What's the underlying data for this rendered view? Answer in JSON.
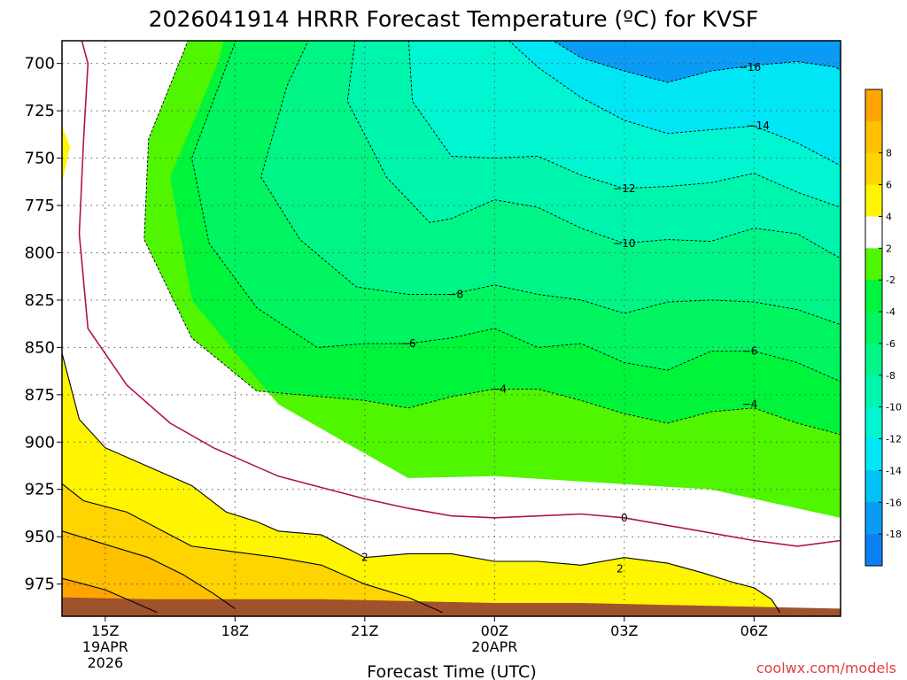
{
  "chart_data": {
    "type": "heatmap",
    "title": "2026041914 HRRR Forecast Temperature (ºC) for KVSF",
    "xlabel": "Forecast Time (UTC)",
    "ylabel": "",
    "credit": "coolwx.com/models",
    "x_ticks": [
      {
        "hour": 15,
        "lines": [
          "15Z",
          "19APR",
          "2026"
        ]
      },
      {
        "hour": 18,
        "lines": [
          "18Z"
        ]
      },
      {
        "hour": 21,
        "lines": [
          "21Z"
        ]
      },
      {
        "hour": 24,
        "lines": [
          "00Z",
          "20APR"
        ]
      },
      {
        "hour": 27,
        "lines": [
          "03Z"
        ]
      },
      {
        "hour": 30,
        "lines": [
          "06Z"
        ]
      }
    ],
    "xlim": [
      14,
      32
    ],
    "y_ticks": [
      700,
      725,
      750,
      775,
      800,
      825,
      850,
      875,
      900,
      925,
      950,
      975
    ],
    "ylim": [
      688,
      992
    ],
    "y_units": "hPa",
    "y_inverted": true,
    "grid": true,
    "colorbar": {
      "levels": [
        -20,
        -18,
        -16,
        -14,
        -12,
        -10,
        -8,
        -6,
        -4,
        -2,
        2,
        4,
        6,
        8,
        10
      ],
      "colors": [
        "#0a80f5",
        "#0a9cf5",
        "#00c2f5",
        "#00e6f5",
        "#00f5d0",
        "#00f5ac",
        "#00f586",
        "#00f560",
        "#00f53a",
        "#50f500",
        "#ffffff",
        "#fff500",
        "#ffd400",
        "#ffc000",
        "#ffa300"
      ],
      "labels": [
        "-18",
        "-16",
        "-14",
        "-12",
        "-10",
        "-8",
        "-6",
        "-4",
        "-2",
        "2",
        "4",
        "6",
        "8"
      ]
    },
    "contour_labels": [
      {
        "text": "-16",
        "x": 29.9,
        "p": 702
      },
      {
        "text": "-14",
        "x": 30.1,
        "p": 733
      },
      {
        "text": "-12",
        "x": 27.0,
        "p": 766
      },
      {
        "text": "-10",
        "x": 27.0,
        "p": 795
      },
      {
        "text": "-8",
        "x": 23.1,
        "p": 822
      },
      {
        "text": "-6",
        "x": 22.0,
        "p": 848
      },
      {
        "text": "-6",
        "x": 29.9,
        "p": 852
      },
      {
        "text": "-4",
        "x": 24.1,
        "p": 872
      },
      {
        "text": "-4",
        "x": 29.9,
        "p": 880
      },
      {
        "text": "0",
        "x": 27.0,
        "p": 940
      },
      {
        "text": "2",
        "x": 21.0,
        "p": 961
      },
      {
        "text": "2",
        "x": 26.9,
        "p": 967
      }
    ],
    "series": [
      {
        "name": "-16",
        "points": [
          [
            23.0,
            683
          ],
          [
            25.0,
            683
          ],
          [
            26.0,
            697
          ],
          [
            27.0,
            704
          ],
          [
            28.0,
            710
          ],
          [
            29.0,
            704
          ],
          [
            30.0,
            701
          ],
          [
            31.0,
            699
          ],
          [
            31.9,
            702
          ],
          [
            32.0,
            704
          ]
        ]
      },
      {
        "name": "-14",
        "points": [
          [
            24.1,
            683
          ],
          [
            25.0,
            702
          ],
          [
            26.0,
            718
          ],
          [
            27.0,
            730
          ],
          [
            28.0,
            737
          ],
          [
            29.0,
            735
          ],
          [
            30.0,
            733
          ],
          [
            31.0,
            742
          ],
          [
            32.0,
            754
          ]
        ]
      },
      {
        "name": "-12",
        "points": [
          [
            22.0,
            683
          ],
          [
            22.1,
            720
          ],
          [
            23.0,
            749
          ],
          [
            24.0,
            750
          ],
          [
            25.0,
            749
          ],
          [
            26.0,
            759
          ],
          [
            27.0,
            766
          ],
          [
            28.0,
            765
          ],
          [
            29.0,
            763
          ],
          [
            30.0,
            758
          ],
          [
            31.0,
            768
          ],
          [
            32.0,
            776
          ]
        ]
      },
      {
        "name": "-10",
        "points": [
          [
            20.8,
            683
          ],
          [
            20.6,
            720
          ],
          [
            21.5,
            760
          ],
          [
            22.5,
            784
          ],
          [
            23.0,
            782
          ],
          [
            24.0,
            772
          ],
          [
            25.0,
            776
          ],
          [
            26.0,
            787
          ],
          [
            27.0,
            795
          ],
          [
            28.0,
            793
          ],
          [
            29.0,
            794
          ],
          [
            30.0,
            787
          ],
          [
            31.0,
            790
          ],
          [
            32.0,
            803
          ]
        ]
      },
      {
        "name": "-8",
        "points": [
          [
            19.8,
            683
          ],
          [
            19.2,
            712
          ],
          [
            18.6,
            760
          ],
          [
            19.5,
            793
          ],
          [
            20.8,
            818
          ],
          [
            22.0,
            822
          ],
          [
            23.0,
            822
          ],
          [
            24.0,
            817
          ],
          [
            25.0,
            822
          ],
          [
            26.0,
            825
          ],
          [
            27.0,
            832
          ],
          [
            28.0,
            826
          ],
          [
            29.0,
            825
          ],
          [
            30.0,
            826
          ],
          [
            31.0,
            830
          ],
          [
            32.0,
            838
          ]
        ]
      },
      {
        "name": "-6",
        "points": [
          [
            18.1,
            683
          ],
          [
            17.0,
            750
          ],
          [
            17.4,
            795
          ],
          [
            18.5,
            829
          ],
          [
            19.9,
            850
          ],
          [
            21.0,
            848
          ],
          [
            22.0,
            848
          ],
          [
            23.0,
            845
          ],
          [
            24.0,
            840
          ],
          [
            25.0,
            850
          ],
          [
            26.0,
            848
          ],
          [
            27.0,
            858
          ],
          [
            28.0,
            862
          ],
          [
            29.0,
            852
          ],
          [
            30.0,
            852
          ],
          [
            31.0,
            858
          ],
          [
            32.0,
            868
          ]
        ]
      },
      {
        "name": "-4",
        "points": [
          [
            17.0,
            683
          ],
          [
            16.0,
            740
          ],
          [
            15.9,
            793
          ],
          [
            17.0,
            845
          ],
          [
            18.5,
            873
          ],
          [
            21.0,
            878
          ],
          [
            22.0,
            882
          ],
          [
            23.0,
            876
          ],
          [
            24.0,
            872
          ],
          [
            25.0,
            872
          ],
          [
            26.0,
            878
          ],
          [
            27.0,
            885
          ],
          [
            28.0,
            890
          ],
          [
            29.0,
            884
          ],
          [
            30.0,
            882
          ],
          [
            31.0,
            890
          ],
          [
            32.0,
            896
          ]
        ]
      },
      {
        "name": "0",
        "points": [
          [
            14.4,
            683
          ],
          [
            14.6,
            700
          ],
          [
            14.5,
            740
          ],
          [
            14.4,
            790
          ],
          [
            14.6,
            840
          ],
          [
            15.5,
            870
          ],
          [
            16.5,
            890
          ],
          [
            17.5,
            903
          ],
          [
            19.0,
            918
          ],
          [
            20.0,
            924
          ],
          [
            21.0,
            930
          ],
          [
            22.0,
            935
          ],
          [
            23.0,
            939
          ],
          [
            24.0,
            940
          ],
          [
            25.0,
            939
          ],
          [
            26.0,
            938
          ],
          [
            27.0,
            940
          ],
          [
            28.0,
            944
          ],
          [
            29.0,
            948
          ],
          [
            30.0,
            952
          ],
          [
            31.0,
            955
          ],
          [
            32.0,
            952
          ]
        ]
      },
      {
        "name": "2",
        "points": [
          [
            14.0,
            853
          ],
          [
            14.4,
            888
          ],
          [
            15.0,
            903
          ],
          [
            16.0,
            913
          ],
          [
            17.0,
            923
          ],
          [
            17.8,
            937
          ],
          [
            18.5,
            942
          ],
          [
            19.0,
            947
          ],
          [
            20.0,
            949
          ],
          [
            21.0,
            961
          ],
          [
            22.0,
            959
          ],
          [
            23.0,
            959
          ],
          [
            24.0,
            963
          ],
          [
            25.0,
            963
          ],
          [
            26.0,
            965
          ],
          [
            27.0,
            961
          ],
          [
            28.0,
            964
          ],
          [
            28.8,
            969
          ],
          [
            29.5,
            974
          ],
          [
            30.0,
            977
          ],
          [
            30.4,
            983
          ],
          [
            30.6,
            990
          ]
        ]
      },
      {
        "name": "4",
        "points": [
          [
            14.0,
            922
          ],
          [
            14.5,
            931
          ],
          [
            15.5,
            937
          ],
          [
            16.5,
            949
          ],
          [
            17.0,
            955
          ],
          [
            18.0,
            958
          ],
          [
            19.0,
            961
          ],
          [
            20.0,
            965
          ],
          [
            20.5,
            970
          ],
          [
            21.0,
            975
          ],
          [
            22.0,
            982
          ],
          [
            22.8,
            990
          ]
        ]
      },
      {
        "name": "6",
        "points": [
          [
            14.0,
            947
          ],
          [
            15.0,
            954
          ],
          [
            16.0,
            961
          ],
          [
            16.8,
            970
          ],
          [
            17.5,
            980
          ],
          [
            18.0,
            988
          ]
        ]
      },
      {
        "name": "8",
        "points": [
          [
            14.0,
            972
          ],
          [
            15.0,
            978
          ],
          [
            15.7,
            985
          ],
          [
            16.2,
            990
          ]
        ]
      }
    ],
    "ground_boundary": [
      [
        14.0,
        982
      ],
      [
        16.0,
        983
      ],
      [
        18.0,
        983
      ],
      [
        20.0,
        983
      ],
      [
        22.0,
        984
      ],
      [
        24.0,
        985
      ],
      [
        26.0,
        985
      ],
      [
        28.0,
        986
      ],
      [
        30.0,
        987
      ],
      [
        32.0,
        988
      ]
    ]
  }
}
